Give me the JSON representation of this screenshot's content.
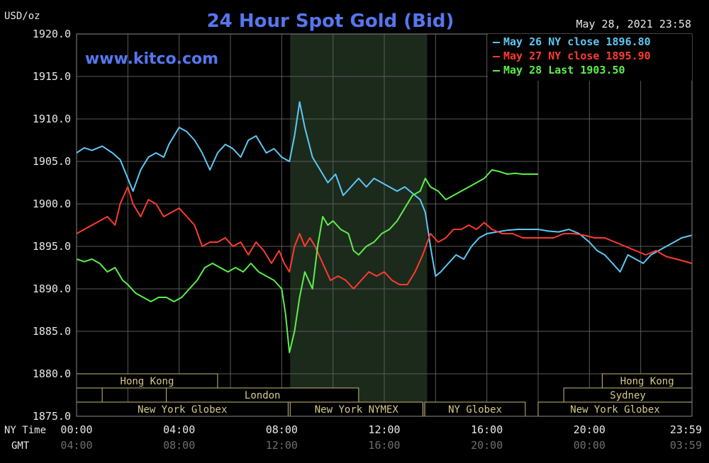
{
  "chart_data": {
    "type": "line",
    "title": "24 Hour Spot Gold (Bid)",
    "site": "www.kitco.com",
    "timestamp": "May 28, 2021 23:58",
    "y_unit": "USD/oz",
    "ylim": [
      1875,
      1920
    ],
    "yticks": [
      "1920.0",
      "1915.0",
      "1910.0",
      "1905.0",
      "1900.0",
      "1895.0",
      "1890.0",
      "1885.0",
      "1880.0",
      "1875.0"
    ],
    "xlim": [
      0,
      24
    ],
    "x_row_label_ny": "NY Time",
    "x_row_label_gmt": "GMT",
    "xticks_ny": [
      "00:00",
      "04:00",
      "08:00",
      "12:00",
      "16:00",
      "20:00",
      "23:59"
    ],
    "xticks_gmt": [
      "04:00",
      "08:00",
      "12:00",
      "16:00",
      "20:00",
      "00:00",
      "03:59"
    ],
    "xtick_positions": [
      0,
      4,
      8,
      12,
      16,
      20,
      24
    ],
    "grid": true,
    "legend_position": "top-right",
    "shaded_region": [
      8.33,
      13.67
    ],
    "sessions": [
      {
        "label": "Hong Kong",
        "row": 0,
        "start": 0.0,
        "end": 5.5
      },
      {
        "label": "",
        "row": 1,
        "start": 0.0,
        "end": 1.0
      },
      {
        "label": "London",
        "row": 1,
        "start": 3.5,
        "end": 11.0
      },
      {
        "label": "New York Globex",
        "row": 2,
        "start": 0.0,
        "end": 8.25
      },
      {
        "label": "New York NYMEX",
        "row": 2,
        "start": 8.33,
        "end": 13.5
      },
      {
        "label": "NY Globex",
        "row": 2,
        "start": 13.58,
        "end": 17.5
      },
      {
        "label": "Hong Kong",
        "row": 0,
        "start": 20.5,
        "end": 24.0
      },
      {
        "label": "Sydney",
        "row": 1,
        "start": 19.0,
        "end": 24.0
      },
      {
        "label": "New York Globex",
        "row": 2,
        "start": 18.0,
        "end": 24.0
      }
    ],
    "series": [
      {
        "name": "May 26 NY close 1896.80",
        "color": "#5ec8f5",
        "x": [
          0,
          0.3,
          0.6,
          1,
          1.4,
          1.7,
          2,
          2.2,
          2.5,
          2.8,
          3.1,
          3.4,
          3.6,
          3.8,
          4,
          4.3,
          4.6,
          4.9,
          5.2,
          5.5,
          5.8,
          6.1,
          6.4,
          6.7,
          7,
          7.2,
          7.4,
          7.7,
          8,
          8.3,
          8.5,
          8.7,
          8.9,
          9.2,
          9.5,
          9.8,
          10.1,
          10.4,
          10.7,
          11,
          11.3,
          11.6,
          11.9,
          12.2,
          12.5,
          12.8,
          13,
          13.2,
          13.4,
          13.6,
          13.8,
          14,
          14.2,
          14.5,
          14.8,
          15.1,
          15.4,
          15.7,
          16,
          16.4,
          16.8,
          17.2,
          17.6,
          18,
          18.4,
          18.8,
          19.2,
          19.6,
          20,
          20.3,
          20.6,
          20.9,
          21.2,
          21.5,
          21.8,
          22.1,
          22.4,
          22.7,
          23,
          23.3,
          23.6,
          23.99
        ],
        "y": [
          1906.0,
          1906.6,
          1906.3,
          1906.8,
          1906.0,
          1905.2,
          1903.0,
          1901.5,
          1904.0,
          1905.5,
          1906.0,
          1905.5,
          1907.0,
          1908.0,
          1909.0,
          1908.5,
          1907.5,
          1906.0,
          1904.0,
          1906.0,
          1907.0,
          1906.5,
          1905.5,
          1907.5,
          1908.0,
          1907.0,
          1906.0,
          1906.5,
          1905.5,
          1905.0,
          1908.0,
          1912.0,
          1909.0,
          1905.5,
          1904.0,
          1902.5,
          1903.5,
          1901.0,
          1902.0,
          1903.0,
          1902.0,
          1903.0,
          1902.5,
          1902.0,
          1901.5,
          1902.0,
          1901.5,
          1901.0,
          1900.5,
          1899.0,
          1895.0,
          1891.5,
          1892.0,
          1893.0,
          1894.0,
          1893.5,
          1895.0,
          1896.0,
          1896.5,
          1896.7,
          1896.9,
          1897.0,
          1897.0,
          1897.0,
          1896.8,
          1896.7,
          1897.0,
          1896.5,
          1895.5,
          1894.5,
          1894.0,
          1893.0,
          1892.0,
          1894.0,
          1893.5,
          1893.0,
          1894.0,
          1894.5,
          1895.0,
          1895.5,
          1896.0,
          1896.3
        ]
      },
      {
        "name": "May 27 NY close 1895.90",
        "color": "#ff3b2f",
        "x": [
          0,
          0.3,
          0.6,
          0.9,
          1.2,
          1.5,
          1.7,
          2,
          2.2,
          2.5,
          2.8,
          3.1,
          3.4,
          3.7,
          4,
          4.3,
          4.6,
          4.9,
          5.2,
          5.5,
          5.8,
          6.1,
          6.4,
          6.7,
          7,
          7.3,
          7.6,
          7.9,
          8.1,
          8.3,
          8.5,
          8.7,
          8.9,
          9.1,
          9.3,
          9.6,
          9.9,
          10.2,
          10.5,
          10.8,
          11.1,
          11.4,
          11.7,
          12,
          12.3,
          12.6,
          12.9,
          13.2,
          13.5,
          13.8,
          14.1,
          14.4,
          14.7,
          15,
          15.3,
          15.6,
          15.9,
          16.2,
          16.6,
          17,
          17.4,
          17.8,
          18.2,
          18.6,
          19,
          19.4,
          19.8,
          20.2,
          20.6,
          21,
          21.4,
          21.8,
          22.2,
          22.6,
          23,
          23.4,
          23.99
        ],
        "y": [
          1896.5,
          1897.0,
          1897.5,
          1898.0,
          1898.5,
          1897.5,
          1900.0,
          1902.0,
          1900.0,
          1898.5,
          1900.5,
          1900.0,
          1898.5,
          1899.0,
          1899.5,
          1898.5,
          1897.5,
          1895.0,
          1895.5,
          1895.5,
          1896.0,
          1895.0,
          1895.5,
          1894.0,
          1895.5,
          1894.5,
          1893.0,
          1894.5,
          1893.0,
          1892.0,
          1895.0,
          1896.5,
          1895.0,
          1896.0,
          1895.0,
          1893.0,
          1891.0,
          1891.5,
          1891.0,
          1890.0,
          1891.0,
          1892.0,
          1891.5,
          1892.0,
          1891.0,
          1890.5,
          1890.5,
          1892.0,
          1894.0,
          1896.5,
          1895.5,
          1896.0,
          1897.0,
          1897.0,
          1897.5,
          1897.0,
          1897.8,
          1897.0,
          1896.5,
          1896.5,
          1896.0,
          1896.0,
          1896.0,
          1896.0,
          1896.5,
          1896.5,
          1896.3,
          1896.0,
          1896.0,
          1895.5,
          1895.0,
          1894.5,
          1894.0,
          1894.5,
          1893.8,
          1893.5,
          1893.0
        ]
      },
      {
        "name": "May 28 Last 1903.50",
        "color": "#5cf04a",
        "x": [
          0,
          0.3,
          0.6,
          0.9,
          1.2,
          1.5,
          1.8,
          2,
          2.3,
          2.6,
          2.9,
          3.2,
          3.5,
          3.8,
          4.1,
          4.4,
          4.7,
          5,
          5.3,
          5.6,
          5.9,
          6.2,
          6.5,
          6.8,
          7.1,
          7.4,
          7.7,
          8,
          8.15,
          8.3,
          8.5,
          8.7,
          8.9,
          9.2,
          9.4,
          9.6,
          9.8,
          10,
          10.3,
          10.6,
          10.8,
          11,
          11.3,
          11.6,
          11.9,
          12.2,
          12.5,
          12.8,
          13.1,
          13.4,
          13.6,
          13.8,
          14.1,
          14.4,
          14.7,
          15,
          15.3,
          15.6,
          15.9,
          16.2,
          16.5,
          16.8,
          17.1,
          17.4,
          17.7,
          18
        ],
        "y": [
          1893.5,
          1893.2,
          1893.5,
          1893.0,
          1892.0,
          1892.5,
          1891.0,
          1890.5,
          1889.5,
          1889.0,
          1888.5,
          1889.0,
          1889.0,
          1888.5,
          1889.0,
          1890.0,
          1891.0,
          1892.5,
          1893.0,
          1892.5,
          1892.0,
          1892.5,
          1892.0,
          1893.0,
          1892.0,
          1891.5,
          1891.0,
          1890.0,
          1887.0,
          1882.5,
          1885.0,
          1889.0,
          1892.0,
          1890.0,
          1895.0,
          1898.5,
          1897.5,
          1898.0,
          1897.0,
          1896.5,
          1894.5,
          1894.0,
          1895.0,
          1895.5,
          1896.5,
          1897.0,
          1898.0,
          1899.5,
          1901.0,
          1901.5,
          1903.0,
          1902.0,
          1901.5,
          1900.5,
          1901.0,
          1901.5,
          1902.0,
          1902.5,
          1903.0,
          1904.0,
          1903.8,
          1903.5,
          1903.6,
          1903.5,
          1903.5,
          1903.5
        ]
      }
    ]
  }
}
